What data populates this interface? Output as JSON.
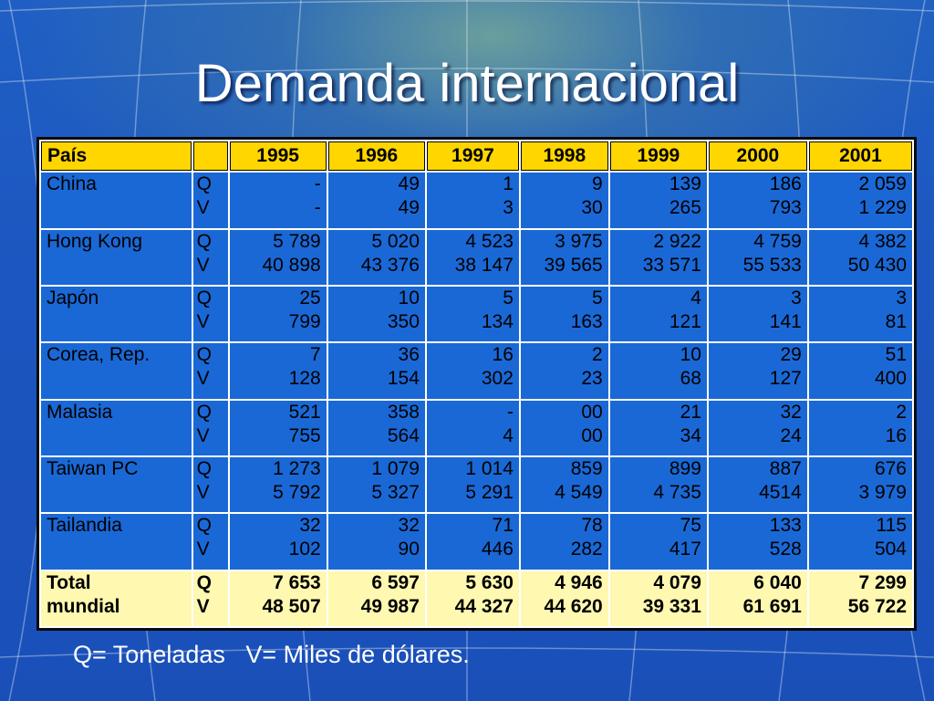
{
  "title": "Demanda internacional",
  "header": [
    "País",
    "",
    "1995",
    "1996",
    "1997",
    "1998",
    "1999",
    "2000",
    "2001"
  ],
  "rows": [
    {
      "country": "China",
      "q": "Q",
      "v": "V",
      "qvals": [
        "-",
        "49",
        "1",
        "9",
        "139",
        "186",
        "2 059"
      ],
      "vvals": [
        "-",
        "49",
        "3",
        "30",
        "265",
        "793",
        "1 229"
      ]
    },
    {
      "country": "Hong Kong",
      "q": "Q",
      "v": "V",
      "qvals": [
        "5 789",
        "5 020",
        "4 523",
        "3 975",
        "2 922",
        "4 759",
        "4 382"
      ],
      "vvals": [
        "40 898",
        "43 376",
        "38 147",
        "39 565",
        "33 571",
        "55 533",
        "50 430"
      ]
    },
    {
      "country": "Japón",
      "q": "Q",
      "v": "V",
      "qvals": [
        "25",
        "10",
        "5",
        "5",
        "4",
        "3",
        "3"
      ],
      "vvals": [
        "799",
        "350",
        "134",
        "163",
        "121",
        "141",
        "81"
      ]
    },
    {
      "country": "Corea, Rep.",
      "q": "Q",
      "v": "V",
      "qvals": [
        "7",
        "36",
        "16",
        "2",
        "10",
        "29",
        "51"
      ],
      "vvals": [
        "128",
        "154",
        "302",
        "23",
        "68",
        "127",
        "400"
      ]
    },
    {
      "country": "Malasia",
      "q": "Q",
      "v": "V",
      "qvals": [
        "521",
        "358",
        "-",
        "00",
        "21",
        "32",
        "2"
      ],
      "vvals": [
        "755",
        "564",
        "4",
        "00",
        "34",
        "24",
        "16"
      ]
    },
    {
      "country": "Taiwan PC",
      "q": "Q",
      "v": "V",
      "qvals": [
        "1 273",
        "1 079",
        "1 014",
        "859",
        "899",
        "887",
        "676"
      ],
      "vvals": [
        "5 792",
        "5 327",
        "5 291",
        "4 549",
        "4 735",
        "4514",
        "3 979"
      ]
    },
    {
      "country": "Tailandia",
      "q": "Q",
      "v": "V",
      "qvals": [
        "32",
        "32",
        "71",
        "78",
        "75",
        "133",
        "115"
      ],
      "vvals": [
        "102",
        "90",
        "446",
        "282",
        "417",
        "528",
        "504"
      ]
    }
  ],
  "total": {
    "country_line1": "Total",
    "country_line2": "mundial",
    "q": "Q",
    "v": "V",
    "qvals": [
      "7 653",
      "6 597",
      "5 630",
      "4 946",
      "4 079",
      "6 040",
      "7 299"
    ],
    "vvals": [
      "48 507",
      "49 987",
      "44 327",
      "44 620",
      "39 331",
      "61 691",
      "56 722"
    ]
  },
  "footer": "Q= Toneladas   V= Miles de dólares.",
  "colors": {
    "header": "#ffd600",
    "cell": "#1a68d6",
    "total": "#fff8b0",
    "background": "#1c56c0"
  }
}
